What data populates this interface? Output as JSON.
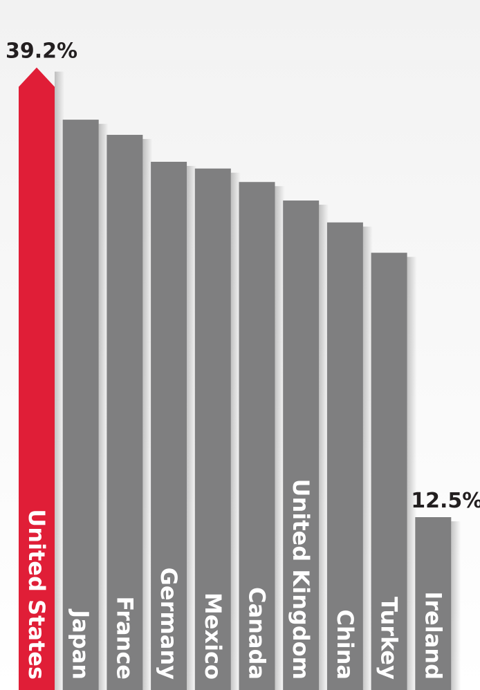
{
  "chart_data": {
    "type": "bar",
    "categories": [
      "United States",
      "Japan",
      "France",
      "Germany",
      "Mexico",
      "Canada",
      "United Kingdom",
      "China",
      "Turkey",
      "Ireland"
    ],
    "values": [
      39.2,
      36.1,
      35.2,
      33.6,
      33.2,
      32.4,
      31.3,
      30.0,
      28.2,
      12.5
    ],
    "value_unit": "%",
    "labeled_values": {
      "United States": "39.2%",
      "Ireland": "12.5%"
    },
    "highlight_category": "United States",
    "colors": {
      "highlight": "#e01e37",
      "default": "#7f7f80",
      "label_text": "#ffffff",
      "value_text": "#231f20"
    },
    "title": "",
    "xlabel": "",
    "ylabel": "",
    "grid": false,
    "legend": "none"
  }
}
